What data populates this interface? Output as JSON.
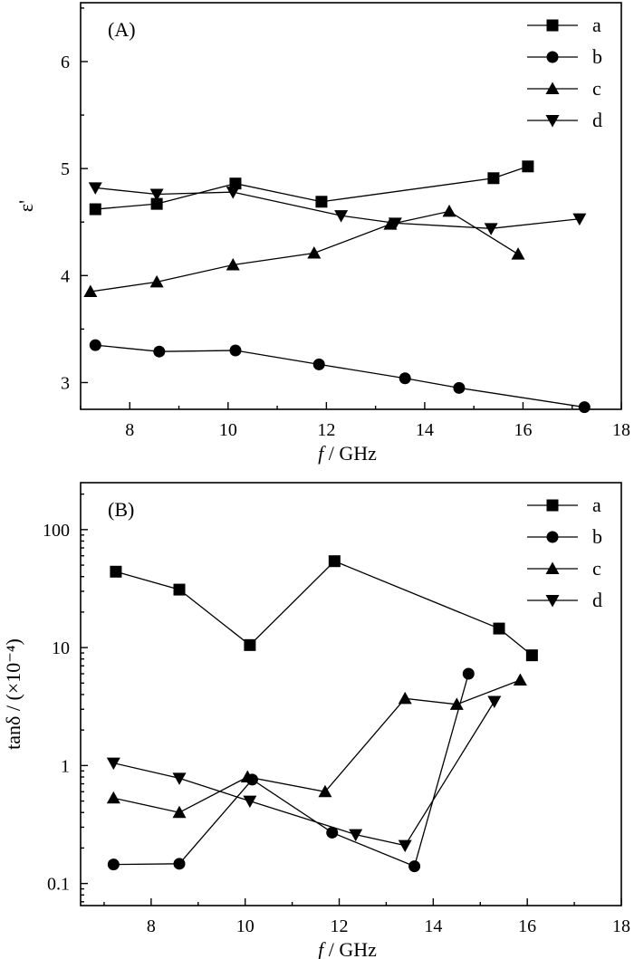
{
  "chart_data": [
    {
      "type": "line",
      "panel_label": "(A)",
      "xlabel_italic": "f",
      "xlabel_rest": " / GHz",
      "ylabel": "ε'",
      "xlim": [
        7,
        18
      ],
      "ylim": [
        2.75,
        6.55
      ],
      "xticks": [
        8,
        10,
        12,
        14,
        16,
        18
      ],
      "yticks": [
        3,
        4,
        5,
        6
      ],
      "yscale": "linear",
      "legend_position": "top-right",
      "series": [
        {
          "name": "a",
          "marker": "square",
          "x": [
            7.3,
            8.55,
            10.15,
            11.9,
            15.4,
            16.1
          ],
          "y": [
            4.62,
            4.67,
            4.86,
            4.69,
            4.91,
            5.02
          ]
        },
        {
          "name": "b",
          "marker": "circle",
          "x": [
            7.3,
            8.6,
            10.15,
            11.85,
            13.6,
            14.7,
            17.25
          ],
          "y": [
            3.35,
            3.29,
            3.3,
            3.17,
            3.04,
            2.95,
            2.77
          ]
        },
        {
          "name": "c",
          "marker": "triangle-up",
          "x": [
            7.2,
            8.55,
            10.1,
            11.75,
            13.3,
            14.5,
            15.9
          ],
          "y": [
            3.85,
            3.94,
            4.1,
            4.21,
            4.48,
            4.6,
            4.2
          ]
        },
        {
          "name": "d",
          "marker": "triangle-down",
          "x": [
            7.3,
            8.55,
            10.1,
            12.3,
            13.4,
            15.35,
            17.15
          ],
          "y": [
            4.82,
            4.76,
            4.78,
            4.56,
            4.49,
            4.44,
            4.53
          ]
        }
      ]
    },
    {
      "type": "line",
      "panel_label": "(B)",
      "xlabel_italic": "f",
      "xlabel_rest": " / GHz",
      "ylabel": "tanδ / (×10⁻⁴)",
      "xlim": [
        6.5,
        18
      ],
      "ylim": [
        0.065,
        250
      ],
      "xticks": [
        8,
        10,
        12,
        14,
        16,
        18
      ],
      "yticks": [
        0.1,
        1,
        10,
        100
      ],
      "ytick_labels": [
        "0.1",
        "1",
        "10",
        "100"
      ],
      "yscale": "log",
      "legend_position": "top-right",
      "series": [
        {
          "name": "a",
          "marker": "square",
          "x": [
            7.25,
            8.6,
            10.1,
            11.9,
            15.4,
            16.1
          ],
          "y": [
            44,
            31,
            10.5,
            54,
            14.5,
            8.6
          ]
        },
        {
          "name": "b",
          "marker": "circle",
          "x": [
            7.2,
            8.6,
            10.15,
            11.85,
            13.6,
            14.75
          ],
          "y": [
            0.145,
            0.147,
            0.76,
            0.27,
            0.14,
            6.0
          ]
        },
        {
          "name": "c",
          "marker": "triangle-up",
          "x": [
            7.2,
            8.6,
            10.05,
            11.7,
            13.4,
            14.5,
            15.85
          ],
          "y": [
            0.53,
            0.4,
            0.8,
            0.6,
            3.7,
            3.3,
            5.3
          ]
        },
        {
          "name": "d",
          "marker": "triangle-down",
          "x": [
            7.2,
            8.6,
            10.1,
            12.35,
            13.4,
            15.3
          ],
          "y": [
            1.05,
            0.78,
            0.5,
            0.26,
            0.21,
            3.5
          ]
        }
      ]
    }
  ]
}
